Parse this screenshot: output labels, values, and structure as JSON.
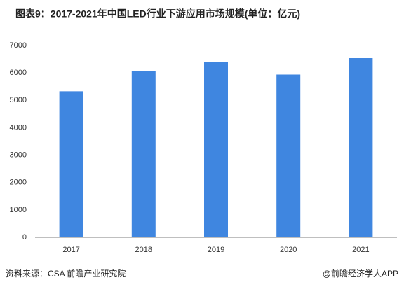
{
  "chart_data": {
    "type": "bar",
    "title": "图表9：2017-2021年中国LED行业下游应用市场规模(单位：亿元)",
    "categories": [
      "2017",
      "2018",
      "2019",
      "2020",
      "2021"
    ],
    "values": [
      5330,
      6080,
      6390,
      5940,
      6540
    ],
    "color": "#3f86e0",
    "ylim": [
      0,
      7000
    ],
    "yticks": [
      0,
      1000,
      2000,
      3000,
      4000,
      5000,
      6000,
      7000
    ],
    "grid": false,
    "source": "资料来源：CSA 前瞻产业研究院",
    "credit": "@前瞻经济学人APP"
  }
}
